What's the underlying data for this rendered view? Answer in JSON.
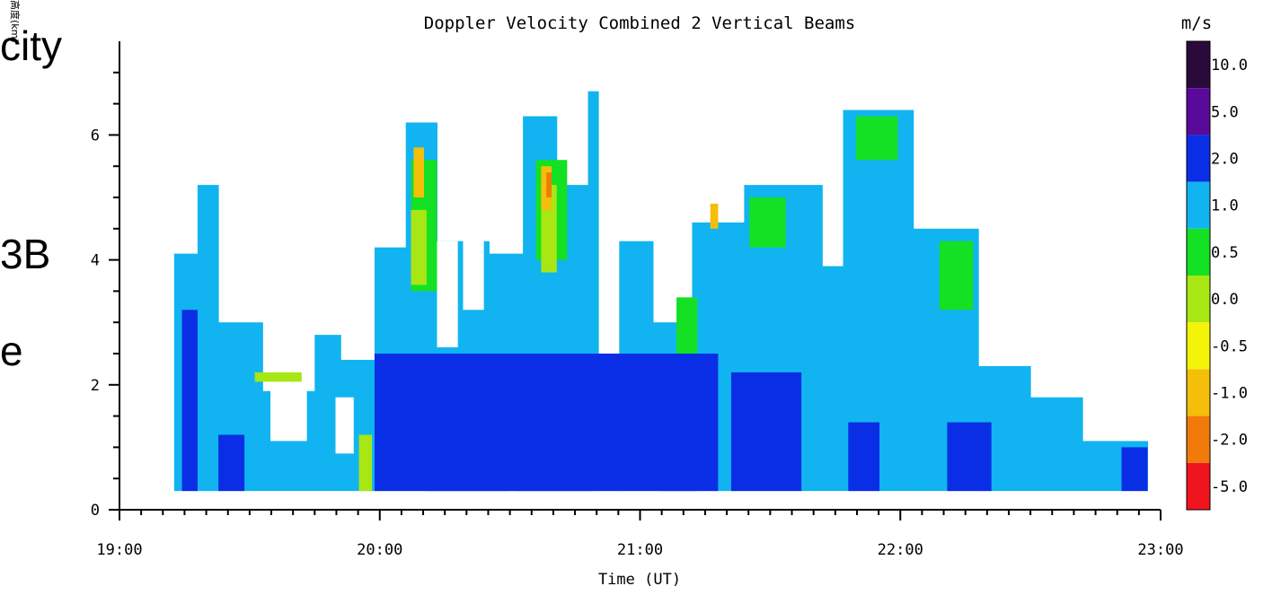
{
  "slide_fragments": [
    "city",
    "3B",
    "e"
  ],
  "rotated_label": "高度(km)",
  "chart_data": {
    "type": "heatmap",
    "title": "Doppler Velocity Combined 2 Vertical Beams",
    "xlabel": "Time (UT)",
    "ylabel": "",
    "x_ticks": [
      "19:00",
      "20:00",
      "21:00",
      "22:00",
      "23:00"
    ],
    "x_range_hours": [
      19,
      23
    ],
    "y_ticks": [
      "0",
      "2",
      "4",
      "6"
    ],
    "y_range": [
      0,
      7.5
    ],
    "colorbar": {
      "unit": "m/s",
      "labels": [
        "10.0",
        "5.0",
        "2.0",
        "1.0",
        "0.5",
        "0.0",
        "-0.5",
        "-1.0",
        "-2.0",
        "-5.0"
      ],
      "colors": [
        "#2a0a3a",
        "#5a0a9a",
        "#0a2ee6",
        "#11b4f0",
        "#14e024",
        "#a8e614",
        "#f4f40a",
        "#f4be0a",
        "#f27a0a",
        "#f0141e"
      ]
    },
    "background_class": "1.0",
    "columns": [
      {
        "t0": 19.21,
        "t1": 19.3,
        "top": 4.1
      },
      {
        "t0": 19.3,
        "t1": 19.38,
        "top": 5.2
      },
      {
        "t0": 19.38,
        "t1": 19.55,
        "top": 3.0
      },
      {
        "t0": 19.55,
        "t1": 19.75,
        "top": 1.9
      },
      {
        "t0": 19.75,
        "t1": 19.85,
        "top": 2.8
      },
      {
        "t0": 19.85,
        "t1": 19.98,
        "top": 2.4
      },
      {
        "t0": 19.98,
        "t1": 20.1,
        "top": 4.2
      },
      {
        "t0": 20.1,
        "t1": 20.22,
        "top": 6.2
      },
      {
        "t0": 20.22,
        "t1": 20.42,
        "top": 4.3
      },
      {
        "t0": 20.42,
        "t1": 20.55,
        "top": 4.1
      },
      {
        "t0": 20.55,
        "t1": 20.68,
        "top": 6.3
      },
      {
        "t0": 20.68,
        "t1": 20.8,
        "top": 5.2
      },
      {
        "t0": 20.8,
        "t1": 20.84,
        "top": 6.7
      },
      {
        "t0": 20.84,
        "t1": 20.92,
        "top": 1.0
      },
      {
        "t0": 20.92,
        "t1": 21.05,
        "top": 4.3
      },
      {
        "t0": 21.05,
        "t1": 21.2,
        "top": 3.0
      },
      {
        "t0": 21.2,
        "t1": 21.4,
        "top": 4.6
      },
      {
        "t0": 21.4,
        "t1": 21.7,
        "top": 5.2
      },
      {
        "t0": 21.7,
        "t1": 21.78,
        "top": 3.9
      },
      {
        "t0": 21.78,
        "t1": 22.05,
        "top": 6.4
      },
      {
        "t0": 22.05,
        "t1": 22.3,
        "top": 4.5
      },
      {
        "t0": 22.3,
        "t1": 22.5,
        "top": 2.3
      },
      {
        "t0": 22.5,
        "t1": 22.7,
        "top": 1.8
      },
      {
        "t0": 22.7,
        "t1": 22.95,
        "top": 1.1
      }
    ],
    "patches": [
      {
        "value": "5.0",
        "t0": 20.18,
        "t1": 20.5,
        "y0": 0.3,
        "y1": 1.4
      },
      {
        "value": "5.0",
        "t0": 20.52,
        "t1": 20.82,
        "y0": 0.3,
        "y1": 1.3
      },
      {
        "value": "5.0",
        "t0": 21.08,
        "t1": 21.22,
        "y0": 0.3,
        "y1": 1.0
      },
      {
        "value": "2.0",
        "t0": 19.98,
        "t1": 21.3,
        "y0": 0.3,
        "y1": 2.5
      },
      {
        "value": "2.0",
        "t0": 21.35,
        "t1": 21.62,
        "y0": 0.3,
        "y1": 2.2
      },
      {
        "value": "2.0",
        "t0": 21.8,
        "t1": 21.92,
        "y0": 0.3,
        "y1": 1.4
      },
      {
        "value": "2.0",
        "t0": 22.18,
        "t1": 22.35,
        "y0": 0.3,
        "y1": 1.4
      },
      {
        "value": "2.0",
        "t0": 19.24,
        "t1": 19.3,
        "y0": 0.3,
        "y1": 3.2
      },
      {
        "value": "2.0",
        "t0": 19.38,
        "t1": 19.48,
        "y0": 0.3,
        "y1": 1.2
      },
      {
        "value": "2.0",
        "t0": 22.85,
        "t1": 22.95,
        "y0": 0.3,
        "y1": 1.0
      },
      {
        "value": "0.5",
        "t0": 20.12,
        "t1": 20.22,
        "y0": 3.5,
        "y1": 5.6
      },
      {
        "value": "0.5",
        "t0": 20.6,
        "t1": 20.72,
        "y0": 4.0,
        "y1": 5.6
      },
      {
        "value": "0.5",
        "t0": 21.42,
        "t1": 21.56,
        "y0": 4.2,
        "y1": 5.0
      },
      {
        "value": "0.5",
        "t0": 21.83,
        "t1": 21.99,
        "y0": 5.6,
        "y1": 6.3
      },
      {
        "value": "0.5",
        "t0": 22.15,
        "t1": 22.28,
        "y0": 3.2,
        "y1": 4.3
      },
      {
        "value": "0.5",
        "t0": 21.14,
        "t1": 21.22,
        "y0": 2.5,
        "y1": 3.4
      },
      {
        "value": "0.0",
        "t0": 20.12,
        "t1": 20.18,
        "y0": 3.6,
        "y1": 4.8
      },
      {
        "value": "0.0",
        "t0": 20.62,
        "t1": 20.68,
        "y0": 3.8,
        "y1": 5.2
      },
      {
        "value": "0.0",
        "t0": 19.52,
        "t1": 19.7,
        "y0": 2.05,
        "y1": 2.2
      },
      {
        "value": "0.0",
        "t0": 19.92,
        "t1": 19.97,
        "y0": 0.3,
        "y1": 1.2
      },
      {
        "value": "-1.0",
        "t0": 20.13,
        "t1": 20.17,
        "y0": 5.0,
        "y1": 5.8
      },
      {
        "value": "-1.0",
        "t0": 20.62,
        "t1": 20.66,
        "y0": 4.8,
        "y1": 5.5
      },
      {
        "value": "-1.0",
        "t0": 21.27,
        "t1": 21.3,
        "y0": 4.5,
        "y1": 4.9
      },
      {
        "value": "-2.0",
        "t0": 20.64,
        "t1": 20.66,
        "y0": 5.0,
        "y1": 5.4
      }
    ],
    "gaps": [
      {
        "t0": 19.58,
        "t1": 19.72,
        "y0": 1.1,
        "y1": 2.0
      },
      {
        "t0": 19.83,
        "t1": 19.9,
        "y0": 0.9,
        "y1": 1.8
      },
      {
        "t0": 20.22,
        "t1": 20.3,
        "y0": 2.6,
        "y1": 4.3
      },
      {
        "t0": 20.32,
        "t1": 20.4,
        "y0": 3.2,
        "y1": 5.0
      }
    ]
  }
}
